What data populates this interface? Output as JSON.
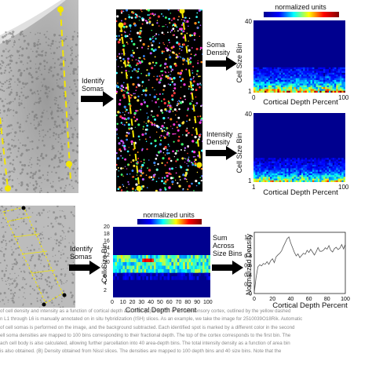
{
  "top": {
    "step1_label": [
      "Identify",
      "Somas"
    ],
    "step2a_label": [
      "Soma",
      "Density"
    ],
    "step2b_label": [
      "Intensity",
      "Density"
    ],
    "colorbar_title": "normalized units",
    "heatmap_a": {
      "ylabel": "Cell Size Bin",
      "xlabel": "Cortical Depth Percent",
      "y_ticks": [
        "40",
        "1"
      ],
      "x_ticks": [
        "0",
        "100"
      ]
    },
    "heatmap_b": {
      "ylabel": "Cell Size Bin",
      "xlabel": "Cortical Depth Percent",
      "y_ticks": [
        "40",
        "1"
      ],
      "x_ticks": [
        "1",
        "100"
      ]
    }
  },
  "bottom": {
    "step1_label": [
      "Identify",
      "Somas"
    ],
    "colorbar_title": "normalized units",
    "heatmap": {
      "ylabel": "Cell Size Bin",
      "xlabel": "Cortical Depth Percent",
      "y_ticks": [
        "20",
        "18",
        "16",
        "14",
        "12",
        "10",
        "8",
        "6",
        "4",
        "2"
      ],
      "x_ticks": [
        "0",
        "10",
        "20",
        "30",
        "40",
        "50",
        "60",
        "70",
        "80",
        "90",
        "100"
      ]
    },
    "sum_label": [
      "Sum",
      "Across",
      "Size Bins"
    ],
    "line_chart": {
      "ylabel": "Normalized Density",
      "xlabel": "Cortical Depth Percent",
      "y_ticks": [
        "1.2",
        "1",
        "0.8",
        "0.6",
        "0.4",
        "0.2",
        "0"
      ],
      "x_ticks": [
        "0",
        "20",
        "40",
        "60",
        "80",
        "100"
      ]
    }
  },
  "caption_lines": [
    "of cell density and intensity as a function of cortical depth and size. (A) A region of somatosensory cortex, outlined by the yellow dashed",
    "n L1 through L6 is manually annotated on in situ hybridization (ISH) slices. As an example, we take the image for 2510039O18Rik. Automatic",
    "of cell somas is performed on the image, and the background subtracted. Each identified spot is marked by a different color in the second",
    "ell soma densities are mapped to 100 bins corresponding to their fractional depth. The top of the cortex corresponds to the first bin. The",
    "ach cell body is also calculated, allowing further parcellation into 40 area-depth bins. The total intensity density as a function of area bin",
    "is also obtained. (B) Density obtained from Nissl slices. The densities are mapped to 100 depth bins and 40 size bins. Note that the"
  ],
  "line_chart_data": {
    "type": "line",
    "x": [
      0,
      2,
      4,
      6,
      8,
      10,
      12,
      14,
      16,
      18,
      20,
      22,
      24,
      26,
      28,
      30,
      32,
      34,
      36,
      38,
      40,
      42,
      44,
      46,
      48,
      50,
      52,
      54,
      56,
      58,
      60,
      62,
      64,
      66,
      68,
      70,
      72,
      74,
      76,
      78,
      80,
      82,
      84,
      86,
      88,
      90,
      92,
      94,
      96,
      98,
      100
    ],
    "y": [
      0.02,
      0.35,
      0.55,
      0.62,
      0.58,
      0.66,
      0.6,
      0.7,
      0.64,
      0.68,
      0.72,
      0.66,
      0.78,
      0.82,
      0.86,
      0.92,
      1.0,
      1.08,
      1.16,
      1.22,
      1.1,
      0.96,
      0.86,
      0.8,
      0.84,
      0.78,
      0.82,
      0.88,
      0.84,
      0.9,
      0.86,
      0.92,
      0.88,
      0.84,
      0.9,
      0.96,
      0.9,
      0.88,
      0.94,
      0.98,
      0.92,
      1.0,
      0.94,
      0.9,
      0.96,
      1.0,
      0.92,
      0.98,
      1.02,
      0.96,
      1.04
    ],
    "xlim": [
      0,
      100
    ],
    "ylim": [
      0,
      1.3
    ]
  }
}
